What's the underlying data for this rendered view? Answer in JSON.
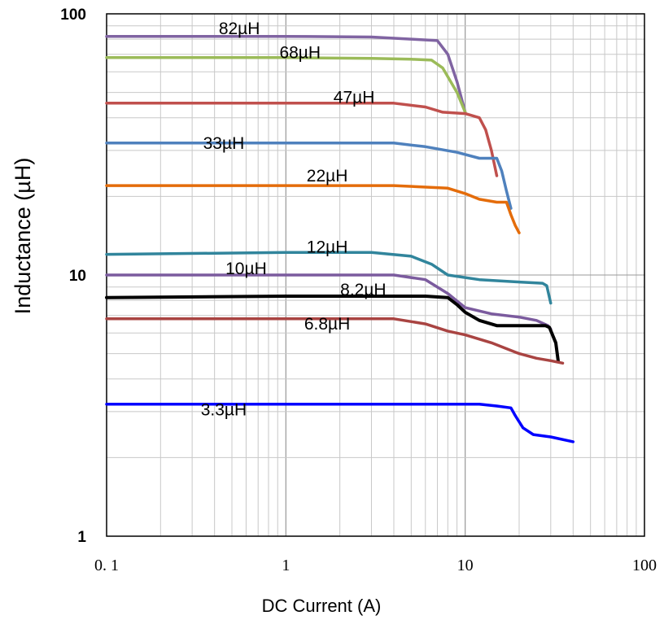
{
  "chart_data": {
    "type": "line",
    "x_scale": "log",
    "y_scale": "log",
    "xlim": [
      0.1,
      100
    ],
    "ylim": [
      1,
      100
    ],
    "grid": true,
    "xlabel": "DC Current (A)",
    "ylabel": "Inductance (µH)",
    "x_ticks": [
      "0. 1",
      "1",
      "10",
      "100"
    ],
    "y_ticks": [
      "1",
      "10",
      "100"
    ],
    "x_tick_values": [
      0.1,
      1,
      10,
      100
    ],
    "y_tick_values": [
      1,
      10,
      100
    ],
    "series": [
      {
        "name": "82µH",
        "color": "#8064A2",
        "points": [
          [
            0.1,
            82
          ],
          [
            1,
            82
          ],
          [
            3,
            81.5
          ],
          [
            5,
            80
          ],
          [
            7,
            79
          ],
          [
            8,
            70
          ],
          [
            9,
            55
          ],
          [
            10,
            42
          ]
        ],
        "label_at": [
          0.55,
          88
        ]
      },
      {
        "name": "68µH",
        "color": "#9BBB59",
        "points": [
          [
            0.1,
            68
          ],
          [
            1,
            68
          ],
          [
            3,
            67.5
          ],
          [
            5,
            67
          ],
          [
            6.5,
            66.5
          ],
          [
            7.5,
            62
          ],
          [
            9,
            50
          ],
          [
            10,
            42
          ]
        ],
        "label_at": [
          1.2,
          71
        ]
      },
      {
        "name": "47µH",
        "color": "#C0504D",
        "points": [
          [
            0.1,
            45.5
          ],
          [
            1,
            45.5
          ],
          [
            4,
            45.5
          ],
          [
            6,
            44
          ],
          [
            7.5,
            42
          ],
          [
            10,
            41.5
          ],
          [
            12,
            40
          ],
          [
            13,
            36
          ],
          [
            14,
            30
          ],
          [
            15,
            24
          ]
        ],
        "label_at": [
          2.4,
          48
        ]
      },
      {
        "name": "33µH",
        "color": "#4F81BD",
        "points": [
          [
            0.1,
            32
          ],
          [
            1,
            32
          ],
          [
            4,
            32
          ],
          [
            6,
            31
          ],
          [
            9,
            29.5
          ],
          [
            12,
            28
          ],
          [
            14,
            28
          ],
          [
            15,
            28
          ],
          [
            16,
            25
          ],
          [
            17,
            21
          ],
          [
            18,
            18
          ]
        ],
        "label_at": [
          0.45,
          32
        ]
      },
      {
        "name": "22µH",
        "color": "#E46C0A",
        "points": [
          [
            0.1,
            22
          ],
          [
            1,
            22
          ],
          [
            4,
            22
          ],
          [
            8,
            21.5
          ],
          [
            10,
            20.5
          ],
          [
            12,
            19.5
          ],
          [
            15,
            19
          ],
          [
            17,
            19
          ],
          [
            18,
            17
          ],
          [
            19,
            15.5
          ],
          [
            20,
            14.5
          ]
        ],
        "label_at": [
          1.7,
          24
        ]
      },
      {
        "name": "12µH",
        "color": "#31859C",
        "points": [
          [
            0.1,
            12
          ],
          [
            1,
            12.2
          ],
          [
            3,
            12.2
          ],
          [
            5,
            11.8
          ],
          [
            6.5,
            11
          ],
          [
            8,
            10
          ],
          [
            12,
            9.6
          ],
          [
            20,
            9.4
          ],
          [
            27,
            9.3
          ],
          [
            28.5,
            9.1
          ],
          [
            30,
            7.8
          ]
        ],
        "label_at": [
          1.7,
          12.8
        ]
      },
      {
        "name": "10µH",
        "color": "#7B5B9E",
        "points": [
          [
            0.1,
            10
          ],
          [
            1,
            10
          ],
          [
            4,
            10
          ],
          [
            6,
            9.6
          ],
          [
            8,
            8.5
          ],
          [
            10,
            7.5
          ],
          [
            14,
            7.1
          ],
          [
            20,
            6.9
          ],
          [
            25,
            6.7
          ],
          [
            29,
            6.4
          ],
          [
            30,
            6.2
          ]
        ],
        "label_at": [
          0.6,
          10.6
        ]
      },
      {
        "name": "8.2µH",
        "color": "#000000",
        "points": [
          [
            0.1,
            8.2
          ],
          [
            1,
            8.3
          ],
          [
            3,
            8.3
          ],
          [
            6,
            8.3
          ],
          [
            8,
            8.2
          ],
          [
            9,
            7.7
          ],
          [
            10,
            7.2
          ],
          [
            12,
            6.7
          ],
          [
            15,
            6.4
          ],
          [
            25,
            6.4
          ],
          [
            28,
            6.4
          ],
          [
            29.5,
            6.3
          ],
          [
            32,
            5.5
          ],
          [
            33,
            4.7
          ]
        ],
        "label_at": [
          2.7,
          8.8
        ]
      },
      {
        "name": "6.8µH",
        "color": "#A94442",
        "points": [
          [
            0.1,
            6.8
          ],
          [
            1,
            6.8
          ],
          [
            4,
            6.8
          ],
          [
            6,
            6.5
          ],
          [
            8,
            6.1
          ],
          [
            10,
            5.9
          ],
          [
            14,
            5.5
          ],
          [
            20,
            5.0
          ],
          [
            25,
            4.8
          ],
          [
            30,
            4.7
          ],
          [
            35,
            4.6
          ]
        ],
        "label_at": [
          1.7,
          6.5
        ]
      },
      {
        "name": "3.3µH",
        "color": "#0000FF",
        "points": [
          [
            0.1,
            3.2
          ],
          [
            1,
            3.2
          ],
          [
            4,
            3.2
          ],
          [
            12,
            3.2
          ],
          [
            15,
            3.15
          ],
          [
            18,
            3.1
          ],
          [
            19,
            2.9
          ],
          [
            21,
            2.6
          ],
          [
            24,
            2.45
          ],
          [
            30,
            2.4
          ],
          [
            40,
            2.3
          ]
        ],
        "label_at": [
          0.45,
          3.05
        ]
      }
    ]
  }
}
